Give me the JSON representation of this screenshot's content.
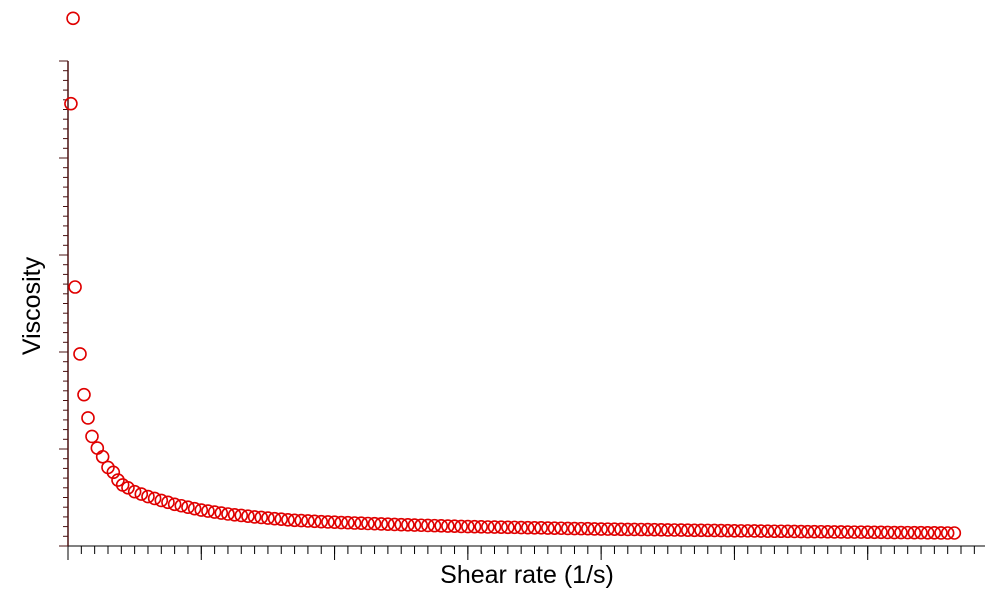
{
  "chart_data": {
    "type": "scatter",
    "xlabel": "Shear rate (1/s)",
    "ylabel": "Viscosity",
    "color": "#e00000",
    "xlim": [
      0,
      68.8
    ],
    "ylim": [
      0,
      50
    ],
    "xticks": [
      0,
      10,
      20,
      30,
      40,
      50,
      60
    ],
    "yticks": [
      0,
      10,
      20,
      30,
      40,
      50
    ],
    "xminorticks": [
      0,
      1,
      2,
      3,
      4,
      5,
      6,
      7,
      8,
      9,
      10,
      11,
      12,
      13,
      14,
      15,
      16,
      17,
      18,
      19,
      20,
      21,
      22,
      23,
      24,
      25,
      26,
      27,
      28,
      29,
      30,
      31,
      32,
      33,
      34,
      35,
      36,
      37,
      38,
      39,
      40,
      41,
      42,
      43,
      44,
      45,
      46,
      47,
      48,
      49,
      50,
      51,
      52,
      53,
      54,
      55,
      56,
      57,
      58,
      59,
      60,
      61,
      62,
      63,
      64,
      65,
      66,
      67,
      68
    ],
    "yminorticks": [
      0,
      1,
      2,
      3,
      4,
      5,
      6,
      7,
      8,
      9,
      10,
      11,
      12,
      13,
      14,
      15,
      16,
      17,
      18,
      19,
      20,
      21,
      22,
      23,
      24,
      25,
      26,
      27,
      28,
      29,
      30,
      31,
      32,
      33,
      34,
      35,
      36,
      37,
      38,
      39,
      40,
      41,
      42,
      43,
      44,
      45,
      46,
      47,
      48,
      49,
      50
    ],
    "x": [
      0.38,
      0.22,
      0.53,
      0.9,
      1.2,
      1.5,
      1.8,
      2.2,
      2.6,
      3.0,
      3.4,
      3.75,
      4.1,
      4.5,
      5,
      5.5,
      6,
      6.5,
      7,
      7.5,
      8,
      8.5,
      9,
      9.5,
      10,
      10.5,
      11,
      11.5,
      12,
      12.5,
      13,
      13.5,
      14,
      14.5,
      15,
      15.5,
      16,
      16.5,
      17,
      17.5,
      18,
      18.5,
      19,
      19.5,
      20,
      20.5,
      21,
      21.5,
      22,
      22.5,
      23,
      23.5,
      24,
      24.5,
      25,
      25.5,
      26,
      26.5,
      27,
      27.5,
      28,
      28.5,
      29,
      29.5,
      30,
      30.5,
      31,
      31.5,
      32,
      32.5,
      33,
      33.5,
      34,
      34.5,
      35,
      35.5,
      36,
      36.5,
      37,
      37.5,
      38,
      38.5,
      39,
      39.5,
      40,
      40.5,
      41,
      41.5,
      42,
      42.5,
      43,
      43.5,
      44,
      44.5,
      45,
      45.5,
      46,
      46.5,
      47,
      47.5,
      48,
      48.5,
      49,
      49.5,
      50,
      50.5,
      51,
      51.5,
      52,
      52.5,
      53,
      53.5,
      54,
      54.5,
      55,
      55.5,
      56,
      56.5,
      57,
      57.5,
      58,
      58.5,
      59,
      59.5,
      60,
      60.5,
      61,
      61.5,
      62,
      62.5,
      63,
      63.5,
      64,
      64.5,
      65,
      65.5,
      66,
      66.5
    ],
    "values": [
      54.4,
      45.6,
      26.7,
      19.8,
      15.6,
      13.2,
      11.3,
      10.1,
      9.2,
      8.1,
      7.6,
      6.8,
      6.3,
      6.0,
      5.6,
      5.35,
      5.1,
      4.9,
      4.7,
      4.5,
      4.3,
      4.15,
      4.0,
      3.85,
      3.7,
      3.6,
      3.5,
      3.4,
      3.3,
      3.22,
      3.15,
      3.07,
      3.0,
      2.94,
      2.88,
      2.82,
      2.76,
      2.7,
      2.65,
      2.62,
      2.58,
      2.55,
      2.51,
      2.48,
      2.45,
      2.42,
      2.4,
      2.37,
      2.35,
      2.32,
      2.3,
      2.27,
      2.25,
      2.22,
      2.2,
      2.18,
      2.16,
      2.14,
      2.12,
      2.1,
      2.08,
      2.06,
      2.04,
      2.02,
      2.0,
      1.99,
      1.98,
      1.96,
      1.95,
      1.94,
      1.93,
      1.92,
      1.9,
      1.89,
      1.88,
      1.87,
      1.85,
      1.84,
      1.83,
      1.81,
      1.8,
      1.79,
      1.78,
      1.76,
      1.75,
      1.74,
      1.73,
      1.72,
      1.71,
      1.71,
      1.7,
      1.69,
      1.68,
      1.67,
      1.66,
      1.65,
      1.64,
      1.63,
      1.62,
      1.62,
      1.61,
      1.6,
      1.59,
      1.58,
      1.57,
      1.56,
      1.56,
      1.55,
      1.54,
      1.53,
      1.52,
      1.52,
      1.51,
      1.5,
      1.49,
      1.48,
      1.48,
      1.47,
      1.46,
      1.45,
      1.45,
      1.44,
      1.43,
      1.43,
      1.42,
      1.41,
      1.41,
      1.4,
      1.39,
      1.39,
      1.38,
      1.37,
      1.37,
      1.36,
      1.36,
      1.35,
      1.34,
      1.34
    ]
  }
}
